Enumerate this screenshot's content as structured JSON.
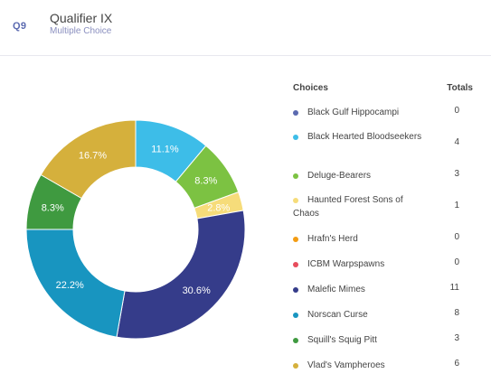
{
  "question": {
    "number": "Q9",
    "title": "Qualifier IX",
    "type": "Multiple Choice"
  },
  "legend": {
    "choices_header": "Choices",
    "totals_header": "Totals"
  },
  "chart_data": {
    "type": "pie",
    "style": "donut",
    "legend_position": "right",
    "categories": [
      "Black Gulf Hippocampi",
      "Black Hearted Bloodseekers",
      "Deluge-Bearers",
      "Haunted Forest Sons of Chaos",
      "Hrafn's Herd",
      "ICBM Warpspawns",
      "Malefic Mimes",
      "Norscan Curse",
      "Squill's Squig Pitt",
      "Vlad's Vampheroes"
    ],
    "values": [
      0,
      4,
      3,
      1,
      0,
      0,
      11,
      8,
      3,
      6
    ],
    "percent_labels": [
      "",
      "11.1%",
      "8.3%",
      "2.8%",
      "",
      "",
      "30.6%",
      "22.2%",
      "8.3%",
      "16.7%"
    ],
    "colors": [
      "#5b6ab0",
      "#3dbde8",
      "#7cc242",
      "#f6dc7a",
      "#f39c12",
      "#e74c5c",
      "#353c8a",
      "#1895c0",
      "#3f9a40",
      "#d5b03c"
    ]
  }
}
